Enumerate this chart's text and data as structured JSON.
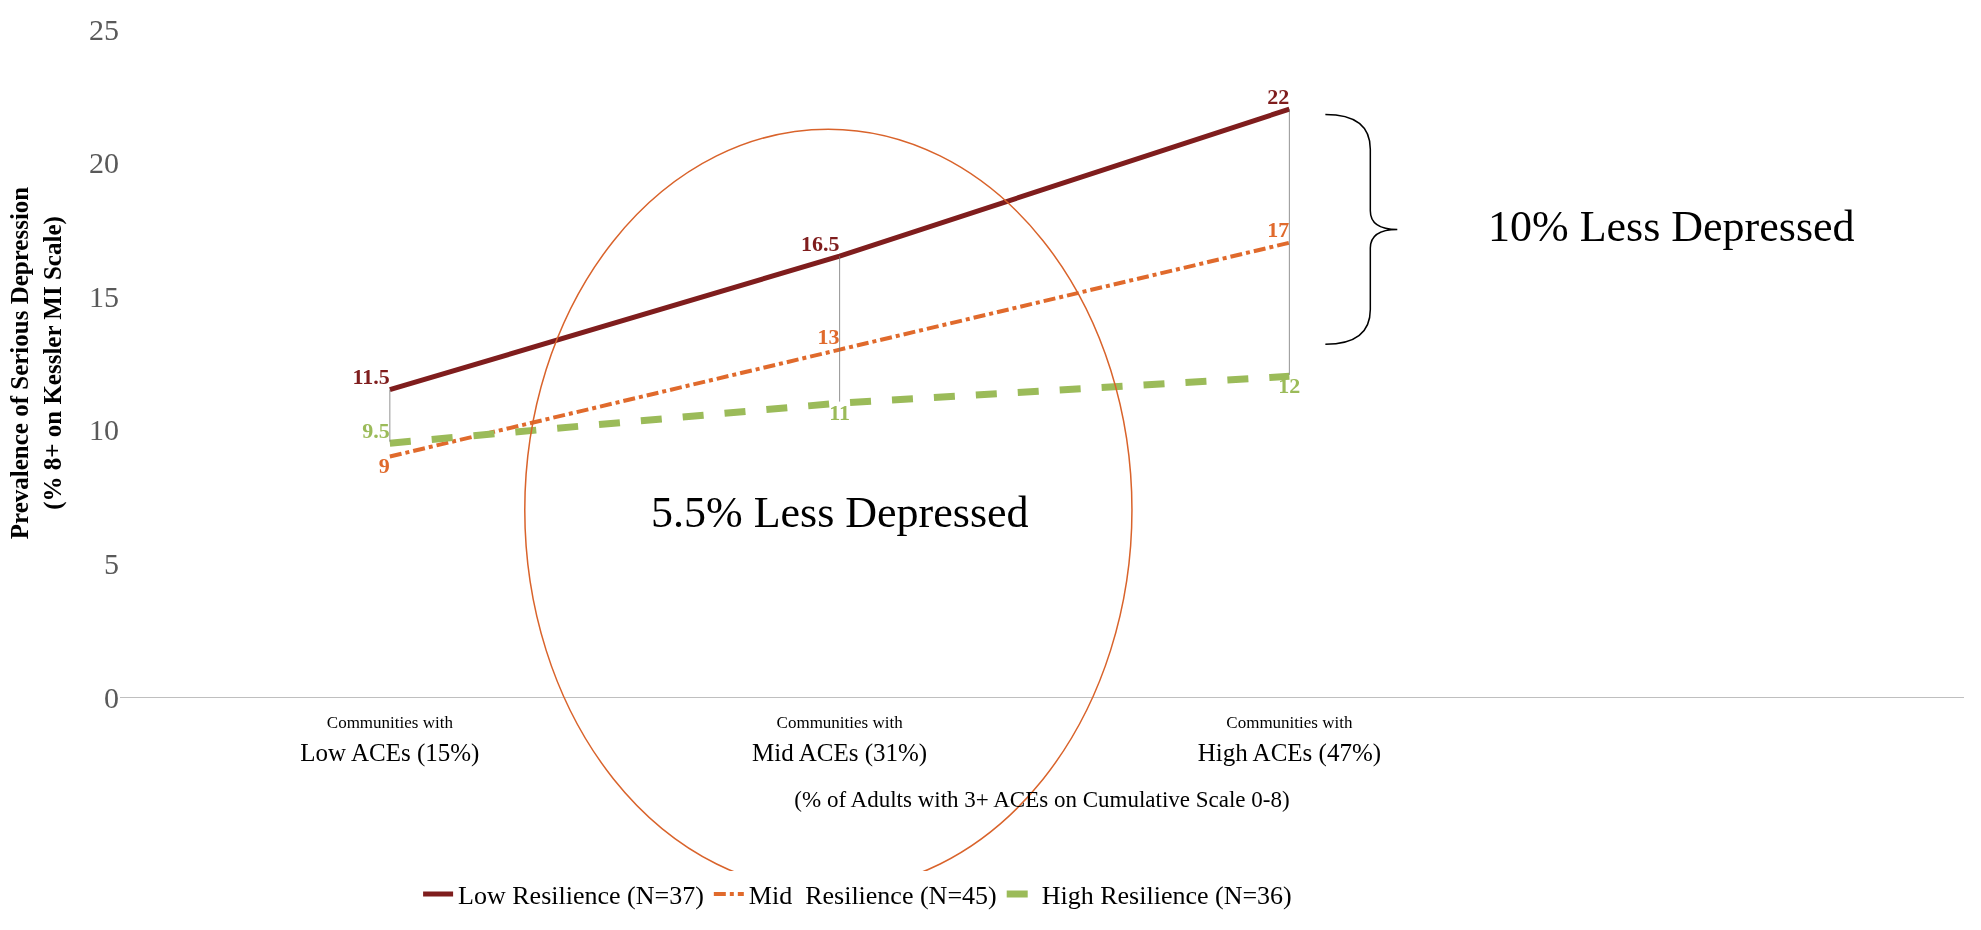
{
  "chart_data": {
    "type": "line",
    "categories": [
      "Communities with\nLow ACEs (15%)",
      "Communities with\nMid ACEs (31%)",
      "Communities with\nHigh ACEs (47%)",
      null
    ],
    "series": [
      {
        "name": "Low Resilience (N=37)",
        "color": "#7f1d1d",
        "line_style": "solid",
        "values": [
          11.5,
          16.5,
          22,
          null
        ]
      },
      {
        "name": "Mid  Resilience (N=45)",
        "color": "#e06a2c",
        "line_style": "dashdot",
        "values": [
          9,
          13,
          17,
          null
        ]
      },
      {
        "name": "High Resilience (N=36)",
        "color": "#9bbb59",
        "line_style": "dashed",
        "values": [
          9.5,
          11,
          12,
          null
        ]
      }
    ],
    "ylabel": "Prevalence of Serious Depression\n(% 8+ on Kessler MI Scale)",
    "xlabel": "(% of Adults with 3+ ACEs on Cumulative Scale 0-8)",
    "ylim": [
      0,
      25
    ],
    "yticks": [
      0,
      5,
      10,
      15,
      20,
      25
    ],
    "data_labels": true,
    "legend": "bottom",
    "marker": "none",
    "annotations": [
      "10% Less Depressed",
      "5.5% Less Depressed"
    ]
  }
}
